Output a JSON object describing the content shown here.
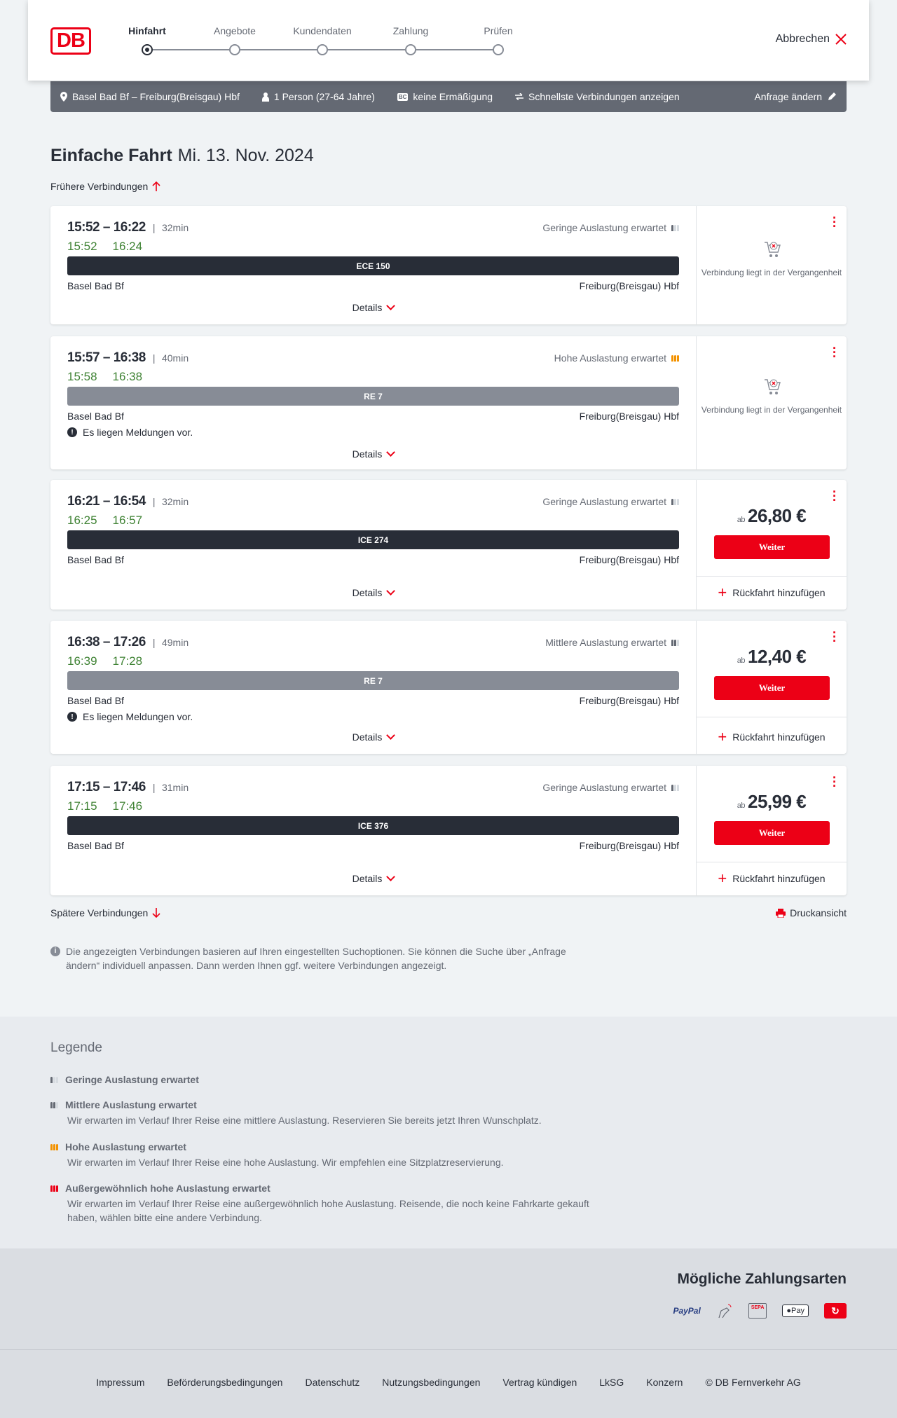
{
  "header": {
    "logo": "DB",
    "steps": [
      "Hinfahrt",
      "Angebote",
      "Kundendaten",
      "Zahlung",
      "Prüfen"
    ],
    "active_step": 0,
    "cancel": "Abbrechen"
  },
  "query": {
    "route": "Basel Bad Bf – Freiburg(Breisgau) Hbf",
    "person": "1 Person (27-64 Jahre)",
    "bc_badge": "BC",
    "discount": "keine Ermäßigung",
    "fastest": "Schnellste Verbindungen anzeigen",
    "change": "Anfrage ändern"
  },
  "title": {
    "main": "Einfache Fahrt",
    "date": "Mi. 13. Nov. 2024"
  },
  "earlier": "Frühere Verbindungen",
  "later": "Spätere Verbindungen",
  "print": "Druckansicht",
  "common": {
    "details": "Details",
    "from": "Basel Bad Bf",
    "to": "Freiburg(Breisgau) Hbf",
    "message": "Es liegen Meldungen vor.",
    "past": "Verbindung liegt in der Vergangenheit",
    "ab": "ab",
    "weiter": "Weiter",
    "return": "Rückfahrt hinzufügen"
  },
  "connections": [
    {
      "time": "15:52 – 16:22",
      "duration": "32min",
      "rt_dep": "15:52",
      "rt_arr": "16:24",
      "load": "Geringe Auslastung erwartet",
      "load_level": 1,
      "train": "ECE 150",
      "train_color": "#282d37",
      "message": false,
      "price": null
    },
    {
      "time": "15:57 – 16:38",
      "duration": "40min",
      "rt_dep": "15:58",
      "rt_arr": "16:38",
      "load": "Hohe Auslastung erwartet",
      "load_level": 3,
      "train": "RE 7",
      "train_color": "#878c96",
      "message": true,
      "price": null
    },
    {
      "time": "16:21 – 16:54",
      "duration": "32min",
      "rt_dep": "16:25",
      "rt_arr": "16:57",
      "load": "Geringe Auslastung erwartet",
      "load_level": 1,
      "train": "ICE 274",
      "train_color": "#282d37",
      "message": false,
      "price": "26,80 €"
    },
    {
      "time": "16:38 – 17:26",
      "duration": "49min",
      "rt_dep": "16:39",
      "rt_arr": "17:28",
      "load": "Mittlere Auslastung erwartet",
      "load_level": 2,
      "train": "RE 7",
      "train_color": "#878c96",
      "message": true,
      "price": "12,40 €"
    },
    {
      "time": "17:15 – 17:46",
      "duration": "31min",
      "rt_dep": "17:15",
      "rt_arr": "17:46",
      "load": "Geringe Auslastung erwartet",
      "load_level": 1,
      "train": "ICE 376",
      "train_color": "#282d37",
      "message": false,
      "price": "25,99 €"
    }
  ],
  "info": "Die angezeigten Verbindungen basieren auf Ihren eingestellten Suchoptionen. Sie können die Suche über „Anfrage ändern“ individuell anpassen. Dann werden Ihnen ggf. weitere Verbindungen angezeigt.",
  "legend": {
    "title": "Legende",
    "items": [
      {
        "title": "Geringe Auslastung erwartet",
        "desc": ""
      },
      {
        "title": "Mittlere Auslastung erwartet",
        "desc": "Wir erwarten im Verlauf Ihrer Reise eine mittlere Auslastung. Reservieren Sie bereits jetzt Ihren Wunschplatz."
      },
      {
        "title": "Hohe Auslastung erwartet",
        "desc": "Wir erwarten im Verlauf Ihrer Reise eine hohe Auslastung. Wir empfehlen eine Sitzplatzreservierung."
      },
      {
        "title": "Außergewöhnlich hohe Auslastung erwartet",
        "desc": "Wir erwarten im Verlauf Ihrer Reise eine außergewöhnlich hohe Auslastung. Reisende, die noch keine Fahrkarte gekauft haben, wählen bitte eine andere Verbindung."
      }
    ]
  },
  "payment": {
    "title": "Mögliche Zahlungsarten",
    "paypal": "PayPal",
    "sepa": "SEPA",
    "applepay": "Pay"
  },
  "footer": [
    "Impressum",
    "Beförderungsbedingungen",
    "Datenschutz",
    "Nutzungsbedingungen",
    "Vertrag kündigen",
    "LkSG",
    "Konzern",
    "© DB Fernverkehr AG"
  ],
  "colors": {
    "brand": "#ec0016",
    "realtime": "#408335",
    "high_load": "#f39200"
  }
}
